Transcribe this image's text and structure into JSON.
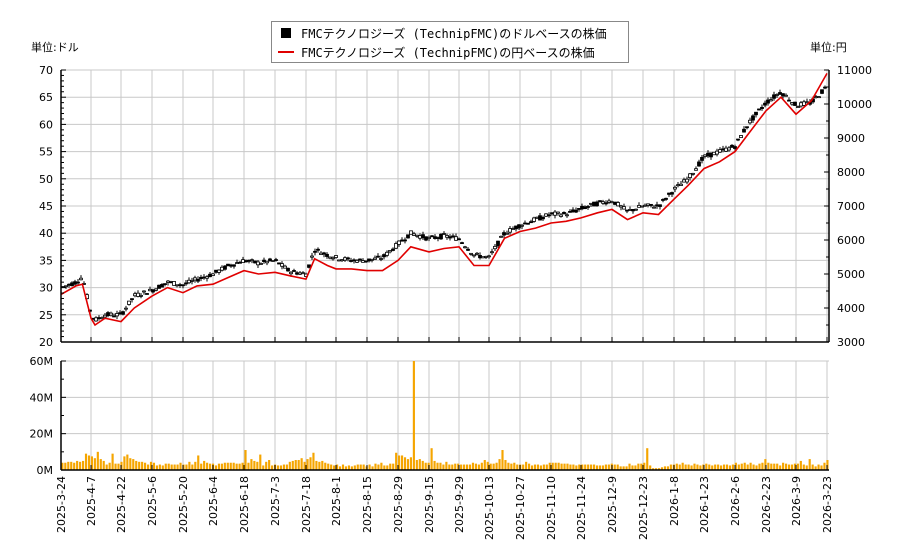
{
  "legend": {
    "usd_label": "FMCテクノロジーズ (TechnipFMC)のドルベースの株価",
    "jpy_label": "FMCテクノロジーズ (TechnipFMC)の円ベースの株価"
  },
  "axes": {
    "left_unit": "単位:ドル",
    "right_unit": "単位:円"
  },
  "colors": {
    "usd_candle": "#000000",
    "jpy_line": "#e00000",
    "volume_bar": "#f5a500",
    "grid": "#c8c8c8"
  },
  "chart_data": [
    {
      "type": "line",
      "title": "FMCテクノロジーズ (TechnipFMC) 株価",
      "xlabel": "",
      "ylabel_left": "単位:ドル",
      "ylabel_right": "単位:円",
      "ylim_left": [
        20,
        70
      ],
      "ylim_right": [
        3000,
        11000
      ],
      "yticks_left": [
        20,
        25,
        30,
        35,
        40,
        45,
        50,
        55,
        60,
        65,
        70
      ],
      "yticks_right": [
        3000,
        4000,
        5000,
        6000,
        7000,
        8000,
        9000,
        10000,
        11000
      ],
      "grid": true,
      "legend_position": "top-center",
      "x_ticks": [
        "2025-3-24",
        "2025-4-7",
        "2025-4-22",
        "2025-5-6",
        "2025-5-20",
        "2025-6-4",
        "2025-6-18",
        "2025-7-3",
        "2025-7-18",
        "2025-8-1",
        "2025-8-15",
        "2025-8-29",
        "2025-9-15",
        "2025-9-29",
        "2025-10-13",
        "2025-10-27",
        "2025-11-10",
        "2025-11-24",
        "2025-12-9",
        "2025-12-23",
        "2026-1-8",
        "2026-1-23",
        "2026-2-6",
        "2026-2-23",
        "2026-3-9",
        "2026-3-23"
      ],
      "series": [
        {
          "name": "FMCテクノロジーズ (TechnipFMC)のドルベースの株価",
          "style": "candlestick",
          "x": [
            "2025-3-24",
            "2025-3-31",
            "2025-4-3",
            "2025-4-7",
            "2025-4-9",
            "2025-4-14",
            "2025-4-22",
            "2025-4-28",
            "2025-5-6",
            "2025-5-13",
            "2025-5-20",
            "2025-5-27",
            "2025-6-4",
            "2025-6-11",
            "2025-6-18",
            "2025-6-25",
            "2025-7-3",
            "2025-7-10",
            "2025-7-18",
            "2025-7-22",
            "2025-7-28",
            "2025-8-1",
            "2025-8-8",
            "2025-8-15",
            "2025-8-22",
            "2025-8-29",
            "2025-9-5",
            "2025-9-15",
            "2025-9-22",
            "2025-9-29",
            "2025-10-6",
            "2025-10-13",
            "2025-10-20",
            "2025-10-27",
            "2025-11-3",
            "2025-11-10",
            "2025-11-17",
            "2025-11-24",
            "2025-12-2",
            "2025-12-9",
            "2025-12-16",
            "2025-12-23",
            "2025-12-31",
            "2026-1-8",
            "2026-1-15",
            "2026-1-23",
            "2026-1-30",
            "2026-2-6",
            "2026-2-13",
            "2026-2-23",
            "2026-3-2",
            "2026-3-9",
            "2026-3-16",
            "2026-3-23"
          ],
          "values": [
            30.0,
            31.0,
            32.0,
            25.0,
            24.0,
            25.0,
            25.0,
            28.5,
            29.5,
            31.0,
            30.5,
            31.5,
            32.5,
            34.0,
            35.0,
            34.5,
            35.0,
            33.0,
            32.5,
            37.0,
            36.0,
            35.5,
            35.0,
            35.0,
            35.5,
            38.0,
            40.0,
            39.0,
            39.5,
            39.0,
            36.0,
            35.5,
            40.0,
            41.5,
            42.5,
            43.5,
            43.5,
            44.5,
            45.5,
            46.0,
            44.0,
            45.0,
            45.0,
            48.0,
            50.0,
            54.0,
            55.0,
            56.0,
            60.0,
            64.0,
            66.0,
            63.5,
            64.0,
            67.0
          ]
        },
        {
          "name": "FMCテクノロジーズ (TechnipFMC)の円ベースの株価",
          "style": "line",
          "axis": "right",
          "x": [
            "2025-3-24",
            "2025-3-31",
            "2025-4-3",
            "2025-4-7",
            "2025-4-9",
            "2025-4-14",
            "2025-4-22",
            "2025-4-28",
            "2025-5-6",
            "2025-5-13",
            "2025-5-20",
            "2025-5-27",
            "2025-6-4",
            "2025-6-11",
            "2025-6-18",
            "2025-6-25",
            "2025-7-3",
            "2025-7-10",
            "2025-7-18",
            "2025-7-22",
            "2025-7-28",
            "2025-8-1",
            "2025-8-8",
            "2025-8-15",
            "2025-8-22",
            "2025-8-29",
            "2025-9-5",
            "2025-9-15",
            "2025-9-22",
            "2025-9-29",
            "2025-10-6",
            "2025-10-13",
            "2025-10-20",
            "2025-10-27",
            "2025-11-3",
            "2025-11-10",
            "2025-11-17",
            "2025-11-24",
            "2025-12-2",
            "2025-12-9",
            "2025-12-16",
            "2025-12-23",
            "2025-12-31",
            "2026-1-8",
            "2026-1-15",
            "2026-1-23",
            "2026-1-30",
            "2026-2-6",
            "2026-2-13",
            "2026-2-23",
            "2026-3-2",
            "2026-3-9",
            "2026-3-16",
            "2026-3-23"
          ],
          "values": [
            4400,
            4650,
            4700,
            3700,
            3500,
            3700,
            3600,
            4000,
            4350,
            4600,
            4450,
            4650,
            4700,
            4900,
            5100,
            5000,
            5050,
            4950,
            4850,
            5450,
            5250,
            5150,
            5150,
            5100,
            5100,
            5400,
            5800,
            5650,
            5750,
            5800,
            5250,
            5250,
            6050,
            6250,
            6350,
            6500,
            6550,
            6650,
            6800,
            6900,
            6600,
            6800,
            6750,
            7200,
            7600,
            8100,
            8300,
            8600,
            9100,
            9800,
            10200,
            9700,
            10100,
            10900
          ]
        }
      ]
    },
    {
      "type": "bar",
      "title": "出来高",
      "ylim": [
        0,
        60000000
      ],
      "yticks": [
        "0M",
        "20M",
        "40M",
        "60M"
      ],
      "grid": true,
      "series": [
        {
          "name": "出来高",
          "values_millions": [
            4,
            4,
            4.5,
            4.5,
            4,
            5,
            4.5,
            5,
            9,
            8,
            7.5,
            6.5,
            10,
            6,
            5,
            3,
            4,
            9,
            3.5,
            3.5,
            4.5,
            7.5,
            8.5,
            6.5,
            6,
            5,
            4.5,
            4.5,
            4,
            3,
            4.5,
            4,
            2.5,
            3,
            2.5,
            3.5,
            3.5,
            3,
            3,
            3,
            4,
            3,
            3,
            4.5,
            3,
            4.5,
            8,
            3.5,
            5,
            4,
            3.5,
            3.5,
            2.5,
            3.5,
            3.5,
            4,
            4,
            4,
            4,
            3.5,
            3.5,
            4,
            11,
            4,
            6,
            5,
            4.5,
            8.5,
            2.5,
            4.5,
            5.5,
            2.5,
            3,
            2.5,
            2.5,
            3,
            3,
            4.5,
            5,
            5.5,
            5.5,
            6.5,
            4.5,
            6,
            7,
            9.5,
            5,
            4.5,
            5,
            4,
            3.5,
            3,
            2.5,
            3,
            2,
            3,
            2,
            2.5,
            2,
            2.5,
            3,
            3,
            3,
            2,
            3,
            2,
            3.5,
            3,
            4,
            2.5,
            2.5,
            3.5,
            3.5,
            9.5,
            8,
            8,
            7,
            6,
            7,
            60,
            5.5,
            6,
            5,
            4,
            4,
            12,
            5,
            4,
            4,
            3,
            4.5,
            3,
            3,
            3.5,
            3.5,
            3,
            3,
            3,
            3,
            4,
            3.5,
            3,
            4,
            5.5,
            4.5,
            3.5,
            3.5,
            4,
            6,
            11,
            5.5,
            4,
            3.5,
            4,
            3,
            3,
            3,
            4.5,
            3.5,
            2.5,
            3,
            3,
            2.5,
            3,
            3,
            4,
            4,
            4,
            4,
            3.5,
            3.5,
            3.5,
            3,
            3,
            2.5,
            3,
            3,
            3,
            3,
            3,
            3,
            2.5,
            2.5,
            2.5,
            3,
            3,
            3.5,
            3,
            3,
            2,
            2,
            2,
            3.5,
            2.5,
            2.5,
            3.5,
            3.5,
            4,
            12,
            2.5,
            1,
            1,
            1,
            1.5,
            2,
            2,
            3,
            3,
            3.5,
            3,
            4,
            3,
            3,
            2.5,
            3.5,
            3,
            2.5,
            3,
            3.5,
            3,
            2.5,
            3,
            3,
            2.5,
            3,
            3,
            2.5,
            3,
            4,
            3,
            3.5,
            4,
            3,
            4,
            3,
            2.5,
            3.5,
            4,
            6,
            4,
            3.5,
            3.5,
            3.5,
            2.5,
            4,
            3.5,
            3,
            3,
            3.5,
            3.5,
            5,
            3,
            2.5,
            6,
            3,
            2,
            3,
            2.5,
            4,
            5.5
          ]
        }
      ]
    }
  ]
}
